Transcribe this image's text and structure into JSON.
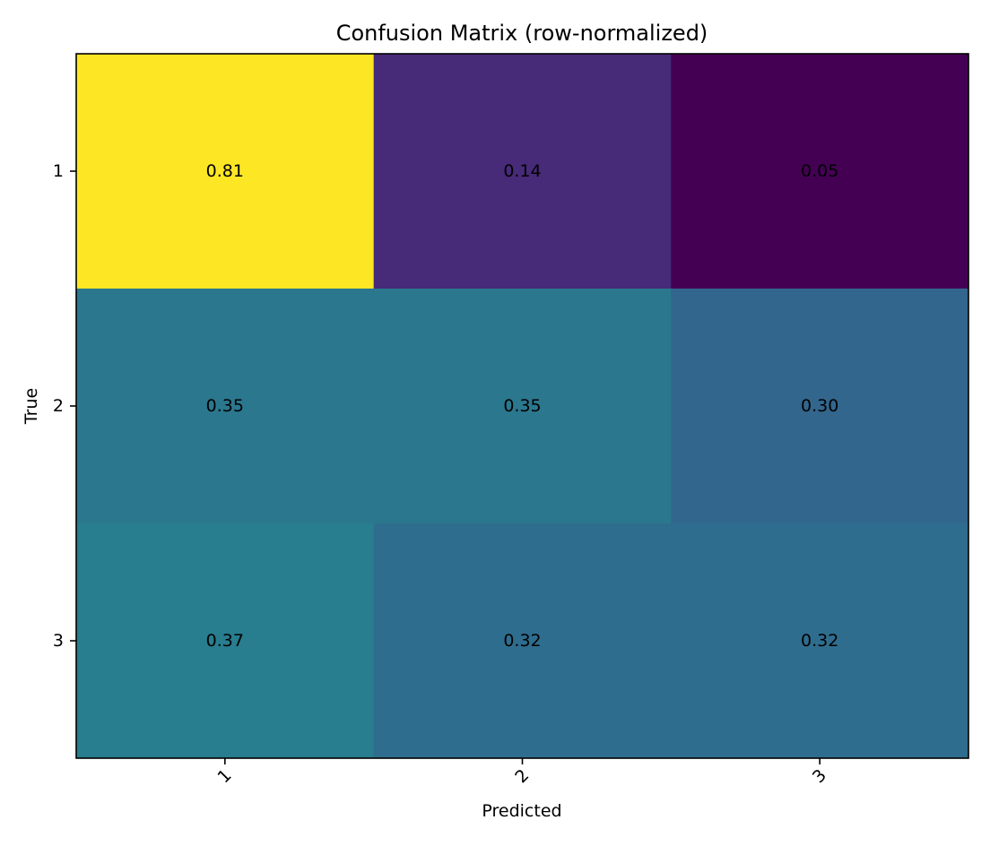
{
  "chart_data": {
    "type": "heatmap",
    "title": "Confusion Matrix (row-normalized)",
    "xlabel": "Predicted",
    "ylabel": "True",
    "x_categories": [
      "1",
      "2",
      "3"
    ],
    "y_categories": [
      "1",
      "2",
      "3"
    ],
    "values": [
      [
        0.81,
        0.14,
        0.05
      ],
      [
        0.35,
        0.35,
        0.3
      ],
      [
        0.37,
        0.32,
        0.32
      ]
    ],
    "value_labels": [
      [
        "0.81",
        "0.14",
        "0.05"
      ],
      [
        "0.35",
        "0.35",
        "0.30"
      ],
      [
        "0.37",
        "0.32",
        "0.32"
      ]
    ],
    "colormap": "viridis",
    "color_range": [
      0.05,
      0.81
    ],
    "x_tick_rotation_deg": 45,
    "grid": false,
    "colorbar": false
  }
}
